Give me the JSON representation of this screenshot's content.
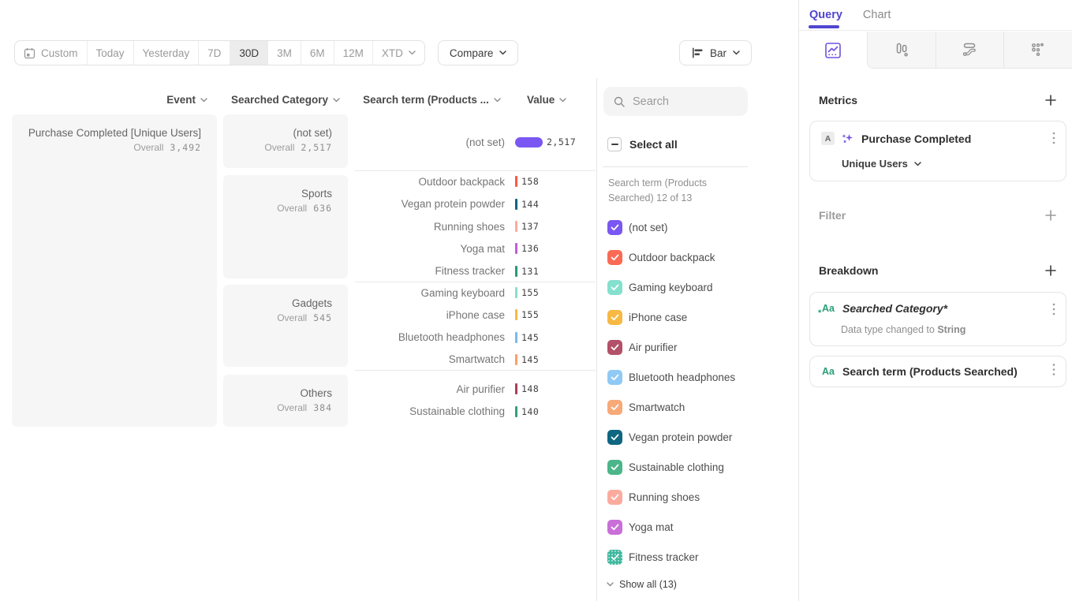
{
  "toolbar": {
    "date_buttons": [
      {
        "label": "Custom",
        "icon": "calendar"
      },
      {
        "label": "Today"
      },
      {
        "label": "Yesterday"
      },
      {
        "label": "7D"
      },
      {
        "label": "30D",
        "selected": true
      },
      {
        "label": "3M"
      },
      {
        "label": "6M"
      },
      {
        "label": "12M"
      },
      {
        "label": "XTD",
        "chevron": true
      }
    ],
    "compare_label": "Compare",
    "chart_type_label": "Bar"
  },
  "table": {
    "columns": [
      "Event",
      "Searched Category",
      "Search term (Products ...",
      "Value"
    ],
    "event": {
      "name": "Purchase Completed [Unique Users]",
      "overall_label": "Overall",
      "overall": "3,492"
    }
  },
  "chart_data": {
    "type": "bar",
    "title": "Purchase Completed [Unique Users]",
    "overall_label": "Overall",
    "overall": "3,492",
    "value_axis": "Value",
    "groups": [
      {
        "category": "(not set)",
        "overall": "2,517",
        "rows": [
          {
            "term": "(not set)",
            "value": "2,517",
            "color": "#7a57f2",
            "big": true
          }
        ]
      },
      {
        "category": "Sports",
        "overall": "636",
        "rows": [
          {
            "term": "Outdoor backpack",
            "value": "158",
            "color": "#fa5a43"
          },
          {
            "term": "Vegan protein powder",
            "value": "144",
            "color": "#0f6680"
          },
          {
            "term": "Running shoes",
            "value": "137",
            "color": "#fbab9e"
          },
          {
            "term": "Yoga mat",
            "value": "136",
            "color": "#bd5fd8"
          },
          {
            "term": "Fitness tracker",
            "value": "131",
            "color": "#27997a"
          }
        ]
      },
      {
        "category": "Gadgets",
        "overall": "545",
        "rows": [
          {
            "term": "Gaming keyboard",
            "value": "155",
            "color": "#85e0cd"
          },
          {
            "term": "iPhone case",
            "value": "155",
            "color": "#f7b844"
          },
          {
            "term": "Bluetooth headphones",
            "value": "145",
            "color": "#79b8f0"
          },
          {
            "term": "Smartwatch",
            "value": "145",
            "color": "#f9a168"
          }
        ]
      },
      {
        "category": "Others",
        "overall": "384",
        "rows": [
          {
            "term": "Air purifier",
            "value": "148",
            "color": "#a93f58"
          },
          {
            "term": "Sustainable clothing",
            "value": "140",
            "color": "#33a07c"
          }
        ]
      }
    ]
  },
  "filter_sidebar": {
    "search_placeholder": "Search",
    "select_all_label": "Select all",
    "list_label": "Search term (Products Searched) 12 of 13",
    "items": [
      {
        "label": "(not set)",
        "color": "#7a57f2"
      },
      {
        "label": "Outdoor backpack",
        "color": "#fa6a55"
      },
      {
        "label": "Gaming keyboard",
        "color": "#85e0cd"
      },
      {
        "label": "iPhone case",
        "color": "#f7b844"
      },
      {
        "label": "Air purifier",
        "color": "#b25169"
      },
      {
        "label": "Bluetooth headphones",
        "color": "#90c9f5"
      },
      {
        "label": "Smartwatch",
        "color": "#f7a978"
      },
      {
        "label": "Vegan protein powder",
        "color": "#0f6680"
      },
      {
        "label": "Sustainable clothing",
        "color": "#4cb58a"
      },
      {
        "label": "Running shoes",
        "color": "#fbab9e"
      },
      {
        "label": "Yoga mat",
        "color": "#c96fd8"
      },
      {
        "label": "Fitness tracker",
        "color": "#3eb79e",
        "textured": true
      }
    ],
    "show_all_label": "Show all (13)"
  },
  "query_panel": {
    "tabs": {
      "query": "Query",
      "chart": "Chart"
    },
    "metrics_title": "Metrics",
    "metric": {
      "badge": "A",
      "event": "Purchase Completed",
      "measure": "Unique Users"
    },
    "filter_title": "Filter",
    "breakdown_title": "Breakdown",
    "breakdown_items": [
      {
        "label": "Searched Category*",
        "italic": true,
        "note_prefix": "Data type changed to ",
        "note_bold": "String",
        "modified": true
      },
      {
        "label": "Search term (Products Searched)"
      }
    ]
  }
}
